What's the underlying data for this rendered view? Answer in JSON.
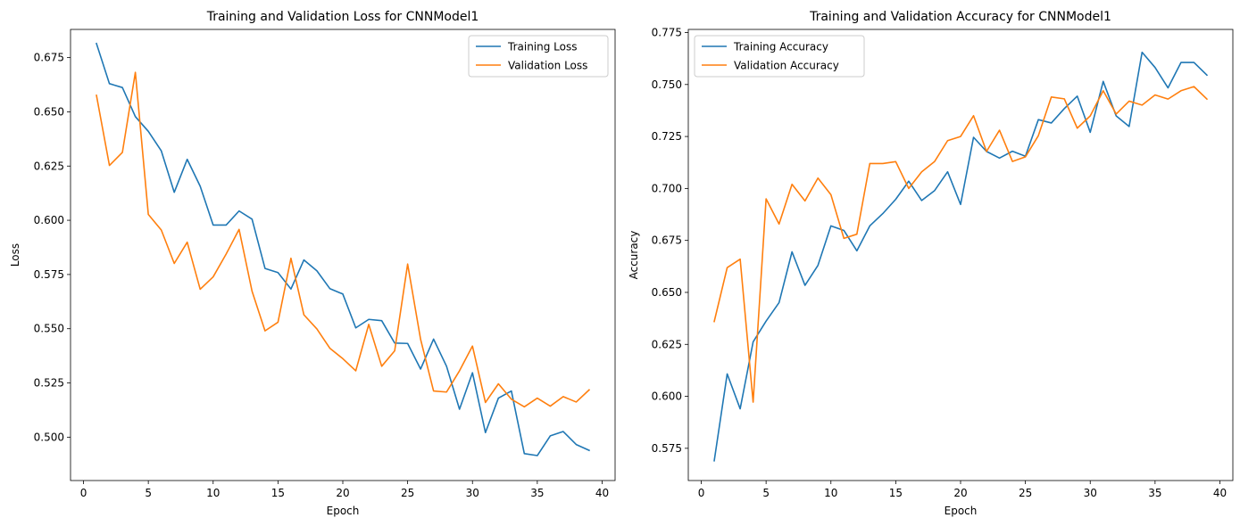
{
  "chart_data": [
    {
      "type": "line",
      "title": "Training and Validation Loss for CNNModel1",
      "xlabel": "Epoch",
      "ylabel": "Loss",
      "xlim": [
        -1,
        41
      ],
      "ylim": [
        0.48,
        0.688
      ],
      "xticks": [
        0,
        5,
        10,
        15,
        20,
        25,
        30,
        35,
        40
      ],
      "yticks": [
        0.5,
        0.525,
        0.55,
        0.575,
        0.6,
        0.625,
        0.65,
        0.675
      ],
      "ytick_labels": [
        "0.500",
        "0.525",
        "0.550",
        "0.575",
        "0.600",
        "0.625",
        "0.650",
        "0.675"
      ],
      "legend_position": "upper right",
      "grid": false,
      "x": [
        1,
        2,
        3,
        4,
        5,
        6,
        7,
        8,
        9,
        10,
        11,
        12,
        13,
        14,
        15,
        16,
        17,
        18,
        19,
        20,
        21,
        22,
        23,
        24,
        25,
        26,
        27,
        28,
        29,
        30,
        31,
        32,
        33,
        34,
        35,
        36,
        37,
        38,
        39
      ],
      "series": [
        {
          "name": "Training Loss",
          "color": "#1f77b4",
          "values": [
            0.6815,
            0.663,
            0.6612,
            0.6478,
            0.641,
            0.632,
            0.6129,
            0.6281,
            0.6157,
            0.5978,
            0.5978,
            0.6043,
            0.6005,
            0.5778,
            0.5759,
            0.5683,
            0.5817,
            0.5767,
            0.5685,
            0.566,
            0.5504,
            0.5543,
            0.5537,
            0.5434,
            0.5432,
            0.5314,
            0.5452,
            0.5327,
            0.5129,
            0.5297,
            0.5021,
            0.518,
            0.5213,
            0.4924,
            0.4915,
            0.5006,
            0.5026,
            0.4966,
            0.4939
          ]
        },
        {
          "name": "Validation Loss",
          "color": "#ff7f0e",
          "values": [
            0.6576,
            0.6253,
            0.6313,
            0.6682,
            0.6027,
            0.5955,
            0.5801,
            0.5899,
            0.5682,
            0.5739,
            0.5844,
            0.5958,
            0.5673,
            0.549,
            0.553,
            0.5825,
            0.5564,
            0.5499,
            0.541,
            0.5362,
            0.5306,
            0.552,
            0.5327,
            0.5398,
            0.5798,
            0.5451,
            0.5213,
            0.5208,
            0.5306,
            0.542,
            0.516,
            0.5246,
            0.5175,
            0.514,
            0.518,
            0.5143,
            0.5187,
            0.5162,
            0.5218
          ]
        }
      ]
    },
    {
      "type": "line",
      "title": "Training and Validation Accuracy for CNNModel1",
      "xlabel": "Epoch",
      "ylabel": "Accuracy",
      "xlim": [
        -1,
        41
      ],
      "ylim": [
        0.5595,
        0.7765
      ],
      "xticks": [
        0,
        5,
        10,
        15,
        20,
        25,
        30,
        35,
        40
      ],
      "yticks": [
        0.575,
        0.6,
        0.625,
        0.65,
        0.675,
        0.7,
        0.725,
        0.75,
        0.775
      ],
      "ytick_labels": [
        "0.575",
        "0.600",
        "0.625",
        "0.650",
        "0.675",
        "0.700",
        "0.725",
        "0.750",
        "0.775"
      ],
      "legend_position": "upper left",
      "grid": false,
      "x": [
        1,
        2,
        3,
        4,
        5,
        6,
        7,
        8,
        9,
        10,
        11,
        12,
        13,
        14,
        15,
        16,
        17,
        18,
        19,
        20,
        21,
        22,
        23,
        24,
        25,
        26,
        27,
        28,
        29,
        30,
        31,
        32,
        33,
        34,
        35,
        36,
        37,
        38,
        39
      ],
      "series": [
        {
          "name": "Training Accuracy",
          "color": "#1f77b4",
          "values": [
            0.569,
            0.6108,
            0.594,
            0.6262,
            0.6362,
            0.6451,
            0.6695,
            0.6534,
            0.663,
            0.682,
            0.6798,
            0.67,
            0.682,
            0.6879,
            0.6948,
            0.7035,
            0.6942,
            0.699,
            0.708,
            0.6923,
            0.7246,
            0.7178,
            0.7146,
            0.7179,
            0.7155,
            0.7331,
            0.7315,
            0.7384,
            0.7444,
            0.727,
            0.7515,
            0.7349,
            0.7298,
            0.7655,
            0.7582,
            0.7484,
            0.7606,
            0.7606,
            0.7545
          ]
        },
        {
          "name": "Validation Accuracy",
          "color": "#ff7f0e",
          "values": [
            0.636,
            0.6619,
            0.666,
            0.5972,
            0.695,
            0.6829,
            0.702,
            0.694,
            0.705,
            0.697,
            0.676,
            0.678,
            0.712,
            0.712,
            0.7129,
            0.7,
            0.708,
            0.713,
            0.723,
            0.725,
            0.735,
            0.7178,
            0.728,
            0.713,
            0.7152,
            0.7254,
            0.744,
            0.7431,
            0.729,
            0.7349,
            0.747,
            0.7358,
            0.742,
            0.7401,
            0.745,
            0.743,
            0.747,
            0.749,
            0.743
          ]
        }
      ]
    }
  ]
}
